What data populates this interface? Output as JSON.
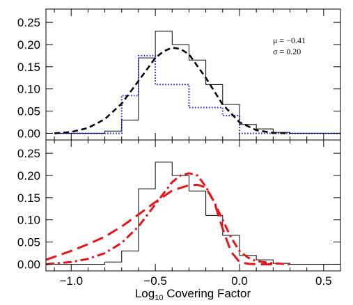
{
  "chart_data": [
    {
      "type": "line",
      "panel": "top",
      "xlim": [
        -1.15,
        0.6
      ],
      "ylim": [
        -0.015,
        0.28
      ],
      "yticks": [
        0.0,
        0.05,
        0.1,
        0.15,
        0.2,
        0.25
      ],
      "ytick_labels": [
        "0.00",
        "0.05",
        "0.10",
        "0.15",
        "0.20",
        "0.25"
      ],
      "annotations": [
        "μ = −0.41",
        "σ = 0.20"
      ],
      "bin_edges": [
        -1.1,
        -1.0,
        -0.9,
        -0.8,
        -0.7,
        -0.6,
        -0.5,
        -0.4,
        -0.3,
        -0.2,
        -0.1,
        0.0,
        0.1,
        0.2,
        0.3,
        0.4,
        0.5,
        0.6
      ],
      "series": [
        {
          "style": "histogram",
          "color": "#000000",
          "dash": "solid",
          "values": [
            0.0,
            0.0,
            0.0,
            0.005,
            0.03,
            0.17,
            0.23,
            0.2,
            0.165,
            0.11,
            0.065,
            0.02,
            0.01,
            0.002,
            0.0,
            0.0,
            0.0
          ]
        },
        {
          "style": "histogram",
          "color": "#1a1aff",
          "dash": "dotted",
          "values": [
            0.0,
            0.0,
            0.0,
            0.0,
            0.085,
            0.175,
            0.11,
            0.11,
            0.058,
            0.058,
            0.04,
            0.0,
            0.0,
            0.0,
            0.0,
            0.0,
            0.0
          ]
        },
        {
          "style": "curve",
          "color": "#000000",
          "dash": "dashed",
          "x": [
            -1.1,
            -1.0,
            -0.9,
            -0.8,
            -0.7,
            -0.6,
            -0.5,
            -0.45,
            -0.4,
            -0.35,
            -0.3,
            -0.2,
            -0.1,
            0.0,
            0.1,
            0.2,
            0.3
          ],
          "y": [
            0.0,
            0.003,
            0.012,
            0.032,
            0.067,
            0.118,
            0.17,
            0.185,
            0.193,
            0.19,
            0.178,
            0.125,
            0.065,
            0.025,
            0.007,
            0.001,
            0.0
          ]
        }
      ]
    },
    {
      "type": "line",
      "panel": "bottom",
      "xlim": [
        -1.15,
        0.6
      ],
      "ylim": [
        -0.015,
        0.28
      ],
      "xticks": [
        -1.0,
        -0.5,
        0.0,
        0.5
      ],
      "xtick_labels": [
        "−1.0",
        "−0.5",
        "0.0",
        "0.5"
      ],
      "yticks": [
        0.0,
        0.05,
        0.1,
        0.15,
        0.2,
        0.25
      ],
      "ytick_labels": [
        "0.00",
        "0.05",
        "0.10",
        "0.15",
        "0.20",
        "0.25"
      ],
      "xlabel": "Log",
      "xlabel_sub": "10",
      "xlabel_rest": " Covering Factor",
      "bin_edges": [
        -1.1,
        -1.0,
        -0.9,
        -0.8,
        -0.7,
        -0.6,
        -0.5,
        -0.4,
        -0.3,
        -0.2,
        -0.1,
        0.0,
        0.1,
        0.2,
        0.3,
        0.4,
        0.5,
        0.6
      ],
      "series": [
        {
          "style": "histogram",
          "color": "#000000",
          "dash": "solid",
          "values": [
            0.0,
            0.0,
            0.0,
            0.005,
            0.03,
            0.17,
            0.23,
            0.2,
            0.165,
            0.11,
            0.065,
            0.02,
            0.01,
            0.002,
            0.0,
            0.0,
            0.0
          ]
        },
        {
          "style": "curve",
          "color": "#e8141b",
          "dash": "long-dash",
          "x": [
            -1.15,
            -1.0,
            -0.9,
            -0.8,
            -0.7,
            -0.6,
            -0.5,
            -0.4,
            -0.3,
            -0.25,
            -0.2,
            -0.15,
            -0.1,
            -0.05,
            0.0,
            0.05,
            0.1,
            0.2
          ],
          "y": [
            0.01,
            0.03,
            0.045,
            0.062,
            0.085,
            0.112,
            0.14,
            0.166,
            0.178,
            0.179,
            0.173,
            0.14,
            0.08,
            0.028,
            0.005,
            0.001,
            0.0,
            0.0
          ]
        },
        {
          "style": "curve",
          "color": "#e8141b",
          "dash": "dash-dot",
          "x": [
            -1.15,
            -1.0,
            -0.9,
            -0.8,
            -0.7,
            -0.6,
            -0.5,
            -0.4,
            -0.35,
            -0.3,
            -0.25,
            -0.2,
            -0.15,
            -0.1,
            -0.05,
            0.0,
            0.05,
            0.1,
            0.2,
            0.3
          ],
          "y": [
            0.0,
            0.005,
            0.012,
            0.025,
            0.048,
            0.085,
            0.135,
            0.185,
            0.2,
            0.205,
            0.2,
            0.175,
            0.14,
            0.1,
            0.06,
            0.03,
            0.015,
            0.007,
            0.002,
            0.0
          ]
        }
      ]
    }
  ]
}
